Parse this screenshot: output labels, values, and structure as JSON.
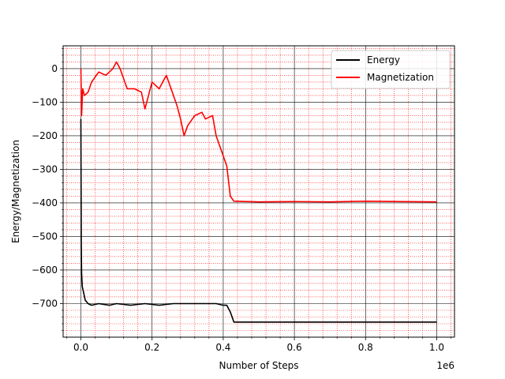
{
  "chart_data": {
    "type": "line",
    "xlabel": "Number of Steps",
    "ylabel": "Energy/Magnetization",
    "x_offset_label": "1e6",
    "xlim": [
      -0.05,
      1.05
    ],
    "ylim": [
      -800,
      68
    ],
    "x_ticks": [
      {
        "value": 0.0,
        "label": "0.0"
      },
      {
        "value": 0.2,
        "label": "0.2"
      },
      {
        "value": 0.4,
        "label": "0.4"
      },
      {
        "value": 0.6,
        "label": "0.6"
      },
      {
        "value": 0.8,
        "label": "0.8"
      },
      {
        "value": 1.0,
        "label": "1.0"
      }
    ],
    "y_ticks": [
      {
        "value": 0,
        "label": "0"
      },
      {
        "value": -100,
        "label": "−100"
      },
      {
        "value": -200,
        "label": "−200"
      },
      {
        "value": -300,
        "label": "−300"
      },
      {
        "value": -400,
        "label": "−400"
      },
      {
        "value": -500,
        "label": "−500"
      },
      {
        "value": -600,
        "label": "−600"
      },
      {
        "value": -700,
        "label": "−700"
      }
    ],
    "grid": {
      "major": true,
      "minor": true,
      "major_color": "#000000",
      "minor_color": "#ff0000"
    },
    "legend_position": "top-right",
    "series": [
      {
        "name": "Energy",
        "color": "#000000",
        "x": [
          0,
          0.001,
          0.002,
          0.004,
          0.008,
          0.012,
          0.02,
          0.03,
          0.05,
          0.08,
          0.1,
          0.14,
          0.18,
          0.22,
          0.26,
          0.3,
          0.34,
          0.38,
          0.4,
          0.41,
          0.42,
          0.43,
          0.5,
          0.6,
          0.7,
          0.8,
          0.9,
          1.0
        ],
        "y": [
          -150,
          -520,
          -610,
          -650,
          -670,
          -690,
          -700,
          -705,
          -700,
          -705,
          -700,
          -705,
          -700,
          -705,
          -700,
          -700,
          -700,
          -700,
          -705,
          -705,
          -725,
          -755,
          -755,
          -755,
          -755,
          -755,
          -755,
          -755
        ]
      },
      {
        "name": "Magnetization",
        "color": "#ff0000",
        "x": [
          0,
          0.002,
          0.005,
          0.01,
          0.02,
          0.03,
          0.05,
          0.07,
          0.09,
          0.1,
          0.11,
          0.13,
          0.15,
          0.17,
          0.18,
          0.2,
          0.22,
          0.24,
          0.26,
          0.27,
          0.28,
          0.29,
          0.3,
          0.32,
          0.34,
          0.35,
          0.37,
          0.38,
          0.4,
          0.41,
          0.42,
          0.43,
          0.5,
          0.6,
          0.7,
          0.8,
          0.9,
          1.0
        ],
        "y": [
          0,
          -140,
          -60,
          -80,
          -70,
          -40,
          -10,
          -20,
          0,
          20,
          0,
          -60,
          -60,
          -70,
          -120,
          -40,
          -60,
          -20,
          -80,
          -110,
          -150,
          -200,
          -170,
          -140,
          -130,
          -150,
          -140,
          -200,
          -260,
          -290,
          -380,
          -395,
          -397,
          -396,
          -397,
          -395,
          -396,
          -397
        ]
      }
    ]
  }
}
